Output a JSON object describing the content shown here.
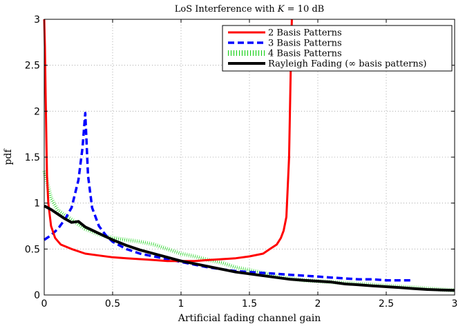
{
  "chart_data": {
    "type": "line",
    "title": "LoS Interference with K = 10 dB",
    "title_parts": {
      "prefix": "LoS Interference with ",
      "var": "K",
      "suffix": " = 10 dB"
    },
    "xlabel": "Artificial fading channel gain",
    "ylabel": "pdf",
    "xlim": [
      0,
      3
    ],
    "ylim": [
      0,
      3
    ],
    "xticks": [
      0,
      0.5,
      1,
      1.5,
      2,
      2.5,
      3
    ],
    "xtick_labels": [
      "0",
      "0.5",
      "1",
      "1.5",
      "2",
      "2.5",
      "3"
    ],
    "yticks": [
      0,
      0.5,
      1,
      1.5,
      2,
      2.5,
      3
    ],
    "ytick_labels": [
      "0",
      "0.5",
      "1",
      "1.5",
      "2",
      "2.5",
      "3"
    ],
    "grid": true,
    "legend_position": "top-right",
    "series": [
      {
        "name": "2 Basis Patterns",
        "color": "#ff0000",
        "style": "solid",
        "x": [
          0.0,
          0.005,
          0.01,
          0.02,
          0.03,
          0.05,
          0.08,
          0.12,
          0.2,
          0.3,
          0.4,
          0.5,
          0.6,
          0.7,
          0.8,
          0.9,
          1.0,
          1.1,
          1.2,
          1.3,
          1.4,
          1.5,
          1.6,
          1.65,
          1.7,
          1.73,
          1.75,
          1.77,
          1.79,
          1.8,
          1.805,
          1.81
        ],
        "y": [
          3.0,
          2.7,
          2.2,
          1.3,
          1.0,
          0.75,
          0.62,
          0.55,
          0.5,
          0.45,
          0.43,
          0.41,
          0.4,
          0.39,
          0.38,
          0.37,
          0.37,
          0.37,
          0.38,
          0.39,
          0.4,
          0.42,
          0.45,
          0.5,
          0.55,
          0.62,
          0.7,
          0.85,
          1.5,
          2.3,
          2.7,
          3.0
        ]
      },
      {
        "name": "3 Basis Patterns",
        "color": "#0000ff",
        "style": "dashed",
        "x": [
          0.0,
          0.05,
          0.1,
          0.15,
          0.2,
          0.25,
          0.28,
          0.3,
          0.32,
          0.35,
          0.4,
          0.45,
          0.5,
          0.6,
          0.7,
          0.8,
          0.9,
          1.0,
          1.1,
          1.2,
          1.3,
          1.4,
          1.5,
          1.6,
          1.7,
          1.8,
          1.9,
          2.0,
          2.1,
          2.2,
          2.3,
          2.4,
          2.5,
          2.6,
          2.7
        ],
        "y": [
          0.6,
          0.65,
          0.72,
          0.82,
          0.95,
          1.25,
          1.6,
          1.98,
          1.3,
          0.95,
          0.75,
          0.65,
          0.58,
          0.5,
          0.45,
          0.42,
          0.39,
          0.36,
          0.33,
          0.3,
          0.28,
          0.26,
          0.25,
          0.24,
          0.23,
          0.22,
          0.21,
          0.2,
          0.19,
          0.18,
          0.17,
          0.17,
          0.16,
          0.16,
          0.16
        ]
      },
      {
        "name": "4 Basis Patterns",
        "color": "#00cc00",
        "style": "dotted",
        "x": [
          0.0,
          0.05,
          0.1,
          0.2,
          0.3,
          0.4,
          0.5,
          0.6,
          0.7,
          0.8,
          0.9,
          1.0,
          1.1,
          1.2,
          1.3,
          1.4,
          1.5,
          1.6,
          1.7,
          1.8,
          1.9,
          2.0,
          2.1,
          2.2,
          2.3,
          2.4,
          2.5,
          2.6,
          2.7,
          2.8,
          2.9,
          3.0
        ],
        "y": [
          1.35,
          1.05,
          0.92,
          0.82,
          0.72,
          0.66,
          0.62,
          0.6,
          0.58,
          0.55,
          0.5,
          0.45,
          0.42,
          0.38,
          0.35,
          0.3,
          0.27,
          0.24,
          0.2,
          0.18,
          0.16,
          0.15,
          0.14,
          0.13,
          0.12,
          0.11,
          0.1,
          0.09,
          0.08,
          0.07,
          0.06,
          0.05
        ]
      },
      {
        "name": "Rayleigh Fading (∞ basis patterns)",
        "color": "#000000",
        "style": "solid",
        "x": [
          0.0,
          0.05,
          0.1,
          0.15,
          0.2,
          0.25,
          0.3,
          0.4,
          0.5,
          0.6,
          0.7,
          0.8,
          0.9,
          1.0,
          1.1,
          1.2,
          1.3,
          1.4,
          1.5,
          1.6,
          1.7,
          1.8,
          1.9,
          2.0,
          2.1,
          2.2,
          2.3,
          2.4,
          2.5,
          2.6,
          2.7,
          2.8,
          2.9,
          3.0
        ],
        "y": [
          0.97,
          0.93,
          0.88,
          0.83,
          0.79,
          0.8,
          0.74,
          0.67,
          0.6,
          0.54,
          0.49,
          0.45,
          0.41,
          0.37,
          0.34,
          0.31,
          0.28,
          0.25,
          0.23,
          0.21,
          0.19,
          0.17,
          0.16,
          0.15,
          0.14,
          0.12,
          0.11,
          0.1,
          0.09,
          0.08,
          0.07,
          0.06,
          0.055,
          0.05
        ]
      }
    ]
  }
}
